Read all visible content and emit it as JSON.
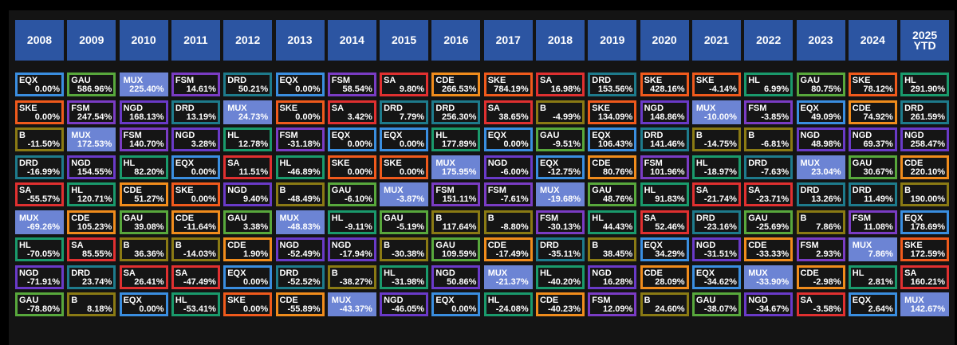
{
  "chart_data": {
    "type": "table",
    "years": [
      "2008",
      "2009",
      "2010",
      "2011",
      "2012",
      "2013",
      "2014",
      "2015",
      "2016",
      "2017",
      "2018",
      "2019",
      "2020",
      "2021",
      "2022",
      "2023",
      "2024",
      "2025\nYTD"
    ],
    "colors": {
      "EQX": "#3a8ee0",
      "GAU": "#58a83c",
      "MUX": "#6c84d4",
      "FSM": "#7a3cc4",
      "DRD": "#1e7b8c",
      "SA": "#e03030",
      "CDE": "#f08c1c",
      "SKE": "#f05a1c",
      "HL": "#1a9a6c",
      "NGD": "#6a3ac8",
      "B": "#8a7a14"
    },
    "columns": [
      [
        [
          "EQX",
          "0.00%"
        ],
        [
          "SKE",
          "0.00%"
        ],
        [
          "B",
          "-11.50%"
        ],
        [
          "DRD",
          "-16.99%"
        ],
        [
          "SA",
          "-55.57%"
        ],
        [
          "MUX",
          "-69.26%"
        ],
        [
          "HL",
          "-70.05%"
        ],
        [
          "NGD",
          "-71.91%"
        ],
        [
          "GAU",
          "-78.80%"
        ]
      ],
      [
        [
          "GAU",
          "586.96%"
        ],
        [
          "FSM",
          "247.54%"
        ],
        [
          "MUX",
          "172.53%"
        ],
        [
          "NGD",
          "154.55%"
        ],
        [
          "HL",
          "120.71%"
        ],
        [
          "CDE",
          "105.23%"
        ],
        [
          "SA",
          "85.55%"
        ],
        [
          "DRD",
          "23.74%"
        ],
        [
          "B",
          "8.18%"
        ]
      ],
      [
        [
          "MUX",
          "225.40%"
        ],
        [
          "NGD",
          "168.13%"
        ],
        [
          "FSM",
          "140.70%"
        ],
        [
          "HL",
          "82.20%"
        ],
        [
          "CDE",
          "51.27%"
        ],
        [
          "GAU",
          "39.08%"
        ],
        [
          "B",
          "36.36%"
        ],
        [
          "SA",
          "26.41%"
        ],
        [
          "EQX",
          "0.00%"
        ]
      ],
      [
        [
          "FSM",
          "14.61%"
        ],
        [
          "DRD",
          "13.19%"
        ],
        [
          "NGD",
          "3.28%"
        ],
        [
          "EQX",
          "0.00%"
        ],
        [
          "SKE",
          "0.00%"
        ],
        [
          "CDE",
          "-11.64%"
        ],
        [
          "B",
          "-14.03%"
        ],
        [
          "SA",
          "-47.49%"
        ],
        [
          "HL",
          "-53.41%"
        ]
      ],
      [
        [
          "DRD",
          "50.21%"
        ],
        [
          "MUX",
          "24.73%"
        ],
        [
          "HL",
          "12.78%"
        ],
        [
          "SA",
          "11.51%"
        ],
        [
          "NGD",
          "9.40%"
        ],
        [
          "GAU",
          "3.38%"
        ],
        [
          "CDE",
          "1.90%"
        ],
        [
          "EQX",
          "0.00%"
        ],
        [
          "SKE",
          "0.00%"
        ]
      ],
      [
        [
          "EQX",
          "0.00%"
        ],
        [
          "SKE",
          "0.00%"
        ],
        [
          "FSM",
          "-31.18%"
        ],
        [
          "HL",
          "-46.89%"
        ],
        [
          "B",
          "-48.49%"
        ],
        [
          "MUX",
          "-48.83%"
        ],
        [
          "NGD",
          "-52.49%"
        ],
        [
          "DRD",
          "-52.52%"
        ],
        [
          "CDE",
          "-55.89%"
        ]
      ],
      [
        [
          "FSM",
          "58.54%"
        ],
        [
          "SA",
          "3.42%"
        ],
        [
          "EQX",
          "0.00%"
        ],
        [
          "SKE",
          "0.00%"
        ],
        [
          "GAU",
          "-6.10%"
        ],
        [
          "HL",
          "-9.11%"
        ],
        [
          "NGD",
          "-17.94%"
        ],
        [
          "B",
          "-38.27%"
        ],
        [
          "MUX",
          "-43.37%"
        ]
      ],
      [
        [
          "SA",
          "9.80%"
        ],
        [
          "DRD",
          "7.79%"
        ],
        [
          "EQX",
          "0.00%"
        ],
        [
          "SKE",
          "0.00%"
        ],
        [
          "MUX",
          "-3.87%"
        ],
        [
          "GAU",
          "-5.19%"
        ],
        [
          "B",
          "-30.38%"
        ],
        [
          "HL",
          "-31.98%"
        ],
        [
          "NGD",
          "-46.05%"
        ]
      ],
      [
        [
          "CDE",
          "266.53%"
        ],
        [
          "DRD",
          "256.30%"
        ],
        [
          "HL",
          "177.89%"
        ],
        [
          "MUX",
          "175.95%"
        ],
        [
          "FSM",
          "151.11%"
        ],
        [
          "B",
          "117.64%"
        ],
        [
          "GAU",
          "109.59%"
        ],
        [
          "NGD",
          "50.86%"
        ],
        [
          "EQX",
          "0.00%"
        ]
      ],
      [
        [
          "SKE",
          "784.19%"
        ],
        [
          "SA",
          "38.65%"
        ],
        [
          "EQX",
          "0.00%"
        ],
        [
          "NGD",
          "-6.00%"
        ],
        [
          "FSM",
          "-7.61%"
        ],
        [
          "B",
          "-8.80%"
        ],
        [
          "CDE",
          "-17.49%"
        ],
        [
          "MUX",
          "-21.37%"
        ],
        [
          "HL",
          "-24.08%"
        ]
      ],
      [
        [
          "SA",
          "16.98%"
        ],
        [
          "B",
          "-4.99%"
        ],
        [
          "GAU",
          "-9.51%"
        ],
        [
          "EQX",
          "-12.75%"
        ],
        [
          "MUX",
          "-19.68%"
        ],
        [
          "FSM",
          "-30.13%"
        ],
        [
          "DRD",
          "-35.11%"
        ],
        [
          "HL",
          "-40.20%"
        ],
        [
          "CDE",
          "-40.23%"
        ]
      ],
      [
        [
          "DRD",
          "153.56%"
        ],
        [
          "SKE",
          "134.09%"
        ],
        [
          "EQX",
          "106.43%"
        ],
        [
          "CDE",
          "80.76%"
        ],
        [
          "GAU",
          "48.76%"
        ],
        [
          "HL",
          "44.43%"
        ],
        [
          "B",
          "38.45%"
        ],
        [
          "NGD",
          "16.28%"
        ],
        [
          "FSM",
          "12.09%"
        ]
      ],
      [
        [
          "SKE",
          "428.16%"
        ],
        [
          "NGD",
          "148.86%"
        ],
        [
          "DRD",
          "141.46%"
        ],
        [
          "FSM",
          "101.96%"
        ],
        [
          "HL",
          "91.83%"
        ],
        [
          "SA",
          "52.46%"
        ],
        [
          "EQX",
          "34.29%"
        ],
        [
          "CDE",
          "28.09%"
        ],
        [
          "B",
          "24.60%"
        ]
      ],
      [
        [
          "SKE",
          "-4.14%"
        ],
        [
          "MUX",
          "-10.00%"
        ],
        [
          "B",
          "-14.75%"
        ],
        [
          "HL",
          "-18.97%"
        ],
        [
          "SA",
          "-21.74%"
        ],
        [
          "DRD",
          "-23.16%"
        ],
        [
          "NGD",
          "-31.51%"
        ],
        [
          "EQX",
          "-34.62%"
        ],
        [
          "GAU",
          "-38.07%"
        ]
      ],
      [
        [
          "HL",
          "6.99%"
        ],
        [
          "FSM",
          "-3.85%"
        ],
        [
          "B",
          "-6.81%"
        ],
        [
          "DRD",
          "-7.63%"
        ],
        [
          "SA",
          "-23.71%"
        ],
        [
          "GAU",
          "-25.69%"
        ],
        [
          "CDE",
          "-33.33%"
        ],
        [
          "MUX",
          "-33.90%"
        ],
        [
          "NGD",
          "-34.67%"
        ]
      ],
      [
        [
          "GAU",
          "80.75%"
        ],
        [
          "EQX",
          "49.09%"
        ],
        [
          "NGD",
          "48.98%"
        ],
        [
          "MUX",
          "23.04%"
        ],
        [
          "DRD",
          "13.26%"
        ],
        [
          "B",
          "7.86%"
        ],
        [
          "FSM",
          "2.93%"
        ],
        [
          "CDE",
          "-2.98%"
        ],
        [
          "SA",
          "-3.58%"
        ]
      ],
      [
        [
          "SKE",
          "78.12%"
        ],
        [
          "CDE",
          "74.92%"
        ],
        [
          "NGD",
          "69.37%"
        ],
        [
          "GAU",
          "30.67%"
        ],
        [
          "DRD",
          "11.49%"
        ],
        [
          "FSM",
          "11.08%"
        ],
        [
          "MUX",
          "7.86%"
        ],
        [
          "HL",
          "2.81%"
        ],
        [
          "EQX",
          "2.64%"
        ]
      ],
      [
        [
          "HL",
          "291.90%"
        ],
        [
          "DRD",
          "261.59%"
        ],
        [
          "NGD",
          "258.47%"
        ],
        [
          "CDE",
          "220.10%"
        ],
        [
          "B",
          "190.00%"
        ],
        [
          "EQX",
          "178.69%"
        ],
        [
          "SKE",
          "172.59%"
        ],
        [
          "SA",
          "160.21%"
        ],
        [
          "MUX",
          "142.67%"
        ]
      ]
    ]
  }
}
